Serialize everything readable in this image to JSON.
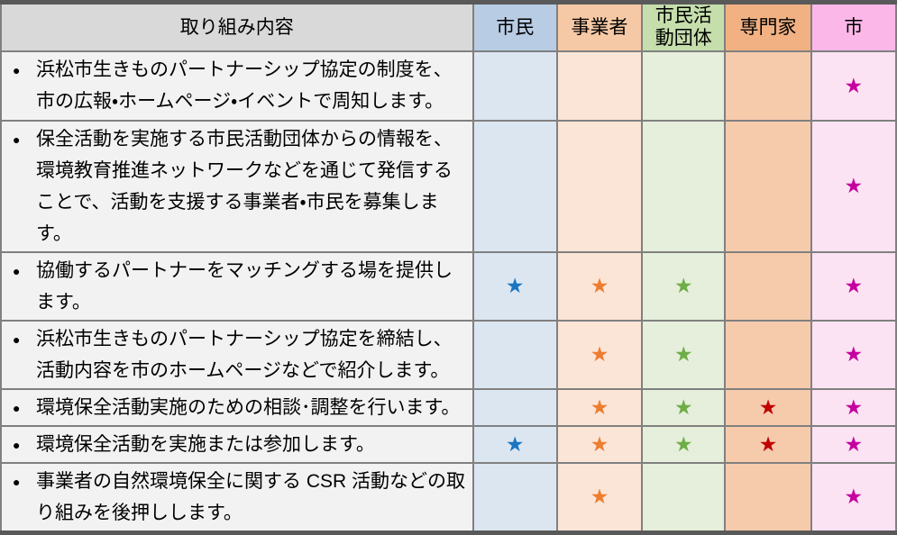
{
  "table": {
    "title_column_label": "取り組み内容",
    "header": {
      "content_label": "取り組み内容",
      "actors": [
        "市民",
        "事業者",
        "市民活動団体",
        "専門家",
        "市"
      ],
      "actor_keys": [
        "citizen",
        "business",
        "civic-group",
        "expert",
        "city"
      ]
    },
    "bullet_glyph": "●",
    "star_glyph": "★",
    "rows": [
      {
        "text": "浜松市生きものパートナーシップ協定の制度を、市の広報・ホームページ・イベントで周知します。",
        "stars": [
          false,
          false,
          false,
          false,
          true
        ]
      },
      {
        "text": "保全活動を実施する市民活動団体からの情報を、環境教育推進ネットワークなどを通じて発信することで、活動を支援する事業者・市民を募集します。",
        "stars": [
          false,
          false,
          false,
          false,
          true
        ]
      },
      {
        "text": "協働するパートナーをマッチングする場を提供します。",
        "stars": [
          true,
          true,
          true,
          false,
          true
        ]
      },
      {
        "text": "浜松市生きものパートナーシップ協定を締結し、活動内容を市のホームページなどで紹介します。",
        "stars": [
          false,
          true,
          true,
          false,
          true
        ]
      },
      {
        "text": "環境保全活動実施のための相談･調整を行います。",
        "stars": [
          false,
          true,
          true,
          true,
          true
        ]
      },
      {
        "text": "環境保全活動を実施または参加します。",
        "stars": [
          true,
          true,
          true,
          true,
          true
        ]
      },
      {
        "text": "事業者の自然環境保全に関する CSR 活動などの取り組みを後押しします。",
        "stars": [
          false,
          true,
          false,
          false,
          true
        ]
      }
    ],
    "colors": {
      "header-gray": "#d9d9d9",
      "header-citizen": "#b8cce4",
      "header-business": "#f6c9a6",
      "header-group": "#c5deac",
      "header-expert": "#f1b183",
      "header-city": "#fbb7e7",
      "body-content": "#f2f2f2",
      "body-citizen": "#dce6f1",
      "body-business": "#fbe5d7",
      "body-group": "#e5efdb",
      "body-expert": "#f6cbac",
      "body-city": "#fbe3f4",
      "star-citizen": "#1b75c0",
      "star-business": "#ed7d31",
      "star-group": "#6fad46",
      "star-expert": "#c00000",
      "star-city": "#c4009e",
      "border-inner": "#808080",
      "border-outer": "#7f7f7f",
      "border-heavy": "#595959"
    }
  }
}
